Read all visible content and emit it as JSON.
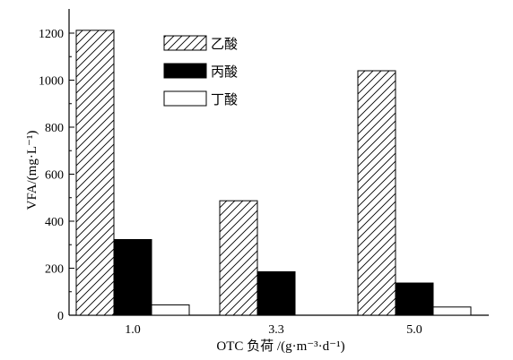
{
  "chart_data": {
    "type": "bar",
    "categories": [
      "1.0",
      "3.3",
      "5.0"
    ],
    "series": [
      {
        "name": "乙酸",
        "values": [
          1212,
          487,
          1040
        ],
        "fill": "hatch"
      },
      {
        "name": "丙酸",
        "values": [
          322,
          185,
          137
        ],
        "fill": "#000000"
      },
      {
        "name": "丁酸",
        "values": [
          44,
          0,
          35
        ],
        "fill": "#ffffff"
      }
    ],
    "xlabel": "OTC 负荷 /(g·m⁻³·d⁻¹)",
    "ylabel": "VFA/(mg·L⁻¹)",
    "ylim": [
      0,
      1300
    ],
    "yticks": [
      "0",
      "200",
      "400",
      "600",
      "800",
      "1000",
      "1200"
    ],
    "grid": false,
    "legend": "top-center"
  }
}
